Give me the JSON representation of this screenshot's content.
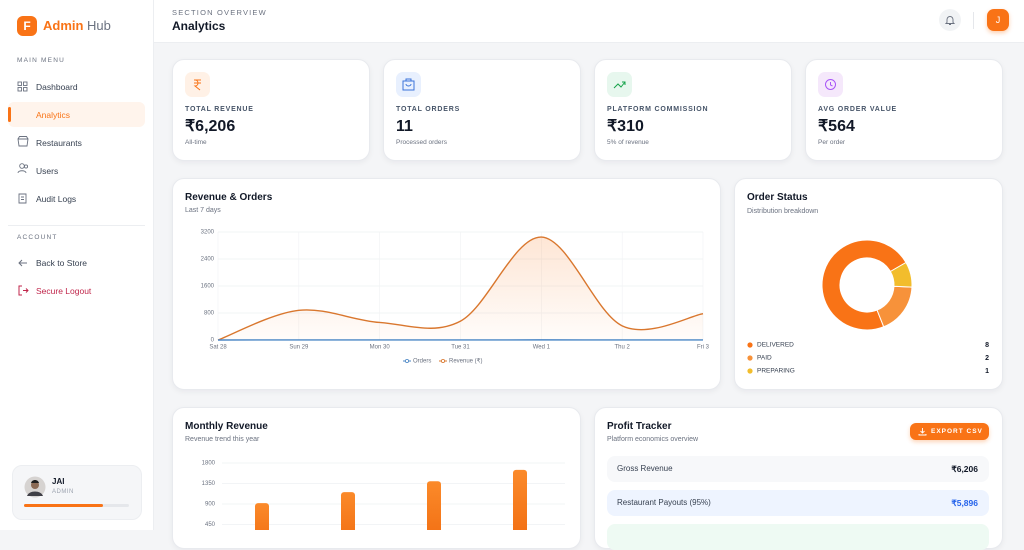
{
  "sidebar": {
    "logo": "F",
    "brand": "Admin",
    "brand_suffix": "Hub",
    "main_menu_title": "MAIN MENU",
    "main_menu": [
      "Dashboard",
      "Analytics",
      "Restaurants",
      "Users",
      "Audit Logs"
    ],
    "account_title": "ACCOUNT",
    "account_menu": [
      "Back to Store",
      "Secure Logout"
    ],
    "user": {
      "name": "JAI",
      "role": "ADMIN"
    }
  },
  "header": {
    "eyebrow": "SECTION OVERVIEW",
    "title": "Analytics",
    "avatar": "J"
  },
  "stats": [
    {
      "label": "TOTAL REVENUE",
      "value": "₹6,206",
      "note": "All-time"
    },
    {
      "label": "TOTAL ORDERS",
      "value": "11",
      "note": "Processed orders"
    },
    {
      "label": "PLATFORM COMMISSION",
      "value": "₹310",
      "note": "5% of revenue"
    },
    {
      "label": "AVG ORDER VALUE",
      "value": "₹564",
      "note": "Per order"
    }
  ],
  "chart_data": [
    {
      "type": "line",
      "title": "Revenue & Orders",
      "subtitle": "Last 7 days",
      "categories": [
        "Sat 28",
        "Sun 29",
        "Mon 30",
        "Tue 31",
        "Wed 1",
        "Thu 2",
        "Fri 3"
      ],
      "series": [
        {
          "name": "Orders",
          "color": "#4a86c5",
          "values": [
            0,
            2,
            1,
            1,
            4,
            1,
            2
          ]
        },
        {
          "name": "Revenue (₹)",
          "color": "#d9772e",
          "fill": true,
          "values": [
            0,
            880,
            520,
            560,
            3050,
            420,
            780
          ]
        }
      ],
      "ylim": [
        0,
        3200
      ],
      "yticks": [
        0,
        800,
        1600,
        2400,
        3200
      ],
      "grid": true
    },
    {
      "type": "doughnut",
      "title": "Order Status",
      "subtitle": "Distribution breakdown",
      "categories": [
        "DELIVERED",
        "PAID",
        "PREPARING"
      ],
      "values": [
        8,
        2,
        1
      ],
      "colors": [
        "#f97316",
        "#f7923a",
        "#f2bd2c"
      ]
    },
    {
      "type": "bar",
      "title": "Monthly Revenue",
      "subtitle": "Revenue trend this year",
      "categories": [
        null,
        null,
        null,
        null
      ],
      "values": [
        920,
        1160,
        1400,
        1650
      ],
      "color": "#f97316",
      "ylim": [
        0,
        1800
      ],
      "yticks": [
        450,
        900,
        1350,
        1800
      ],
      "grid": true
    }
  ],
  "profit_tracker": {
    "title": "Profit Tracker",
    "subtitle": "Platform economics overview",
    "button": "EXPORT CSV",
    "rows": [
      {
        "label": "Gross Revenue",
        "value": "₹6,206"
      },
      {
        "label": "Restaurant Payouts (95%)",
        "value": "₹5,896"
      }
    ]
  }
}
